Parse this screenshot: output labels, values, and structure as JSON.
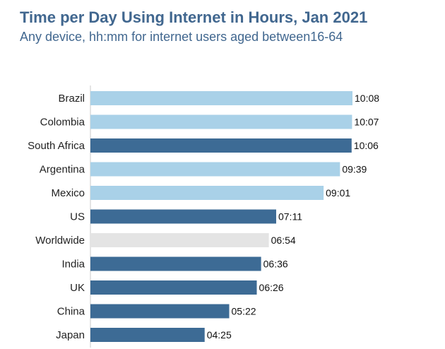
{
  "chart_data": {
    "type": "bar",
    "orientation": "horizontal",
    "title": "Time per Day Using Internet in Hours, Jan 2021",
    "subtitle": "Any device, hh:mm for internet users aged between16-64",
    "categories": [
      "Brazil",
      "Colombia",
      "South Africa",
      "Argentina",
      "Mexico",
      "US",
      "Worldwide",
      "India",
      "UK",
      "China",
      "Japan"
    ],
    "values": [
      10.133,
      10.117,
      10.1,
      9.65,
      9.017,
      7.183,
      6.9,
      6.6,
      6.433,
      5.367,
      4.417
    ],
    "value_labels": [
      "10:08",
      "10:07",
      "10:06",
      "09:39",
      "09:01",
      "07:11",
      "06:54",
      "06:36",
      "06:26",
      "05:22",
      "04:25"
    ],
    "bar_colors": [
      "#a9d1e8",
      "#a9d1e8",
      "#3d6b95",
      "#a9d1e8",
      "#a9d1e8",
      "#3d6b95",
      "#e4e4e4",
      "#3d6b95",
      "#3d6b95",
      "#3d6b95",
      "#3d6b95"
    ],
    "xlim": [
      0,
      10.133
    ],
    "xlabel": "",
    "ylabel": "",
    "grid": false,
    "legend": "none"
  }
}
